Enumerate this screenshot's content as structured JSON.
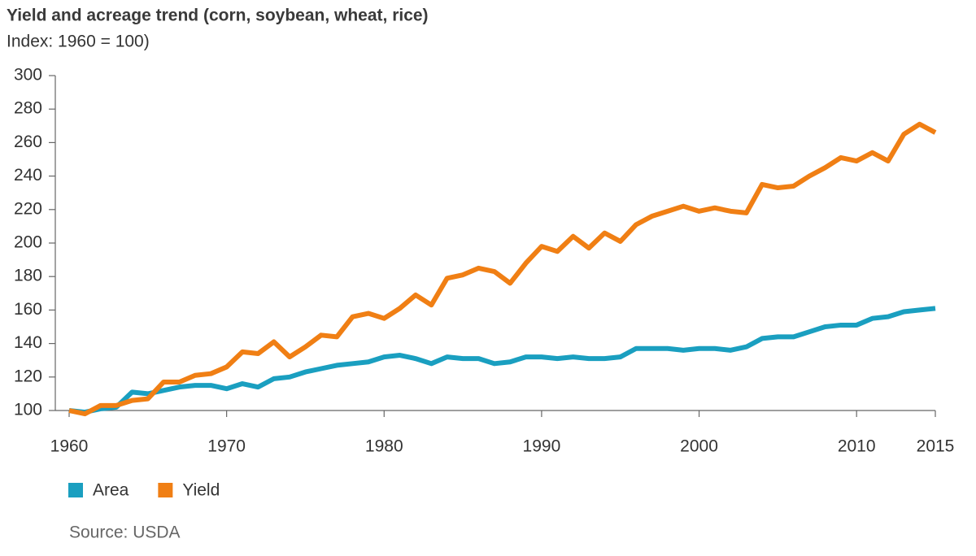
{
  "chart_data": {
    "type": "line",
    "title": "Yield and acreage trend (corn, soybean, wheat, rice)",
    "subtitle": "Index: 1960 = 100)",
    "source": "Source: USDA",
    "x": [
      1960,
      1961,
      1962,
      1963,
      1964,
      1965,
      1966,
      1967,
      1968,
      1969,
      1970,
      1971,
      1972,
      1973,
      1974,
      1975,
      1976,
      1977,
      1978,
      1979,
      1980,
      1981,
      1982,
      1983,
      1984,
      1985,
      1986,
      1987,
      1988,
      1989,
      1990,
      1991,
      1992,
      1993,
      1994,
      1995,
      1996,
      1997,
      1998,
      1999,
      2000,
      2001,
      2002,
      2003,
      2004,
      2005,
      2006,
      2007,
      2008,
      2009,
      2010,
      2011,
      2012,
      2013,
      2014,
      2015
    ],
    "series": [
      {
        "name": "Area",
        "color": "#1a9fc0",
        "values": [
          100,
          99,
          101,
          102,
          111,
          110,
          112,
          114,
          115,
          115,
          113,
          116,
          114,
          119,
          120,
          123,
          125,
          127,
          128,
          129,
          132,
          133,
          131,
          128,
          132,
          131,
          131,
          128,
          129,
          132,
          132,
          131,
          132,
          131,
          131,
          132,
          137,
          137,
          137,
          136,
          137,
          137,
          136,
          138,
          143,
          144,
          144,
          147,
          150,
          151,
          151,
          155,
          156,
          159,
          160,
          161
        ]
      },
      {
        "name": "Yield",
        "color": "#f07f14",
        "values": [
          100,
          98,
          103,
          103,
          106,
          107,
          117,
          117,
          121,
          122,
          126,
          135,
          134,
          141,
          132,
          138,
          145,
          144,
          156,
          158,
          155,
          161,
          169,
          163,
          179,
          181,
          185,
          183,
          176,
          188,
          198,
          195,
          204,
          197,
          206,
          201,
          211,
          216,
          219,
          222,
          219,
          221,
          219,
          218,
          235,
          233,
          234,
          240,
          245,
          251,
          249,
          254,
          249,
          265,
          271,
          266
        ]
      }
    ],
    "xlim": [
      1960,
      2015
    ],
    "xticks": [
      1960,
      1970,
      1980,
      1990,
      2000,
      2010,
      2015
    ],
    "ylim": [
      100,
      300
    ],
    "yticks": [
      100,
      120,
      140,
      160,
      180,
      200,
      220,
      240,
      260,
      280,
      300
    ],
    "legend": "bottom-left"
  }
}
